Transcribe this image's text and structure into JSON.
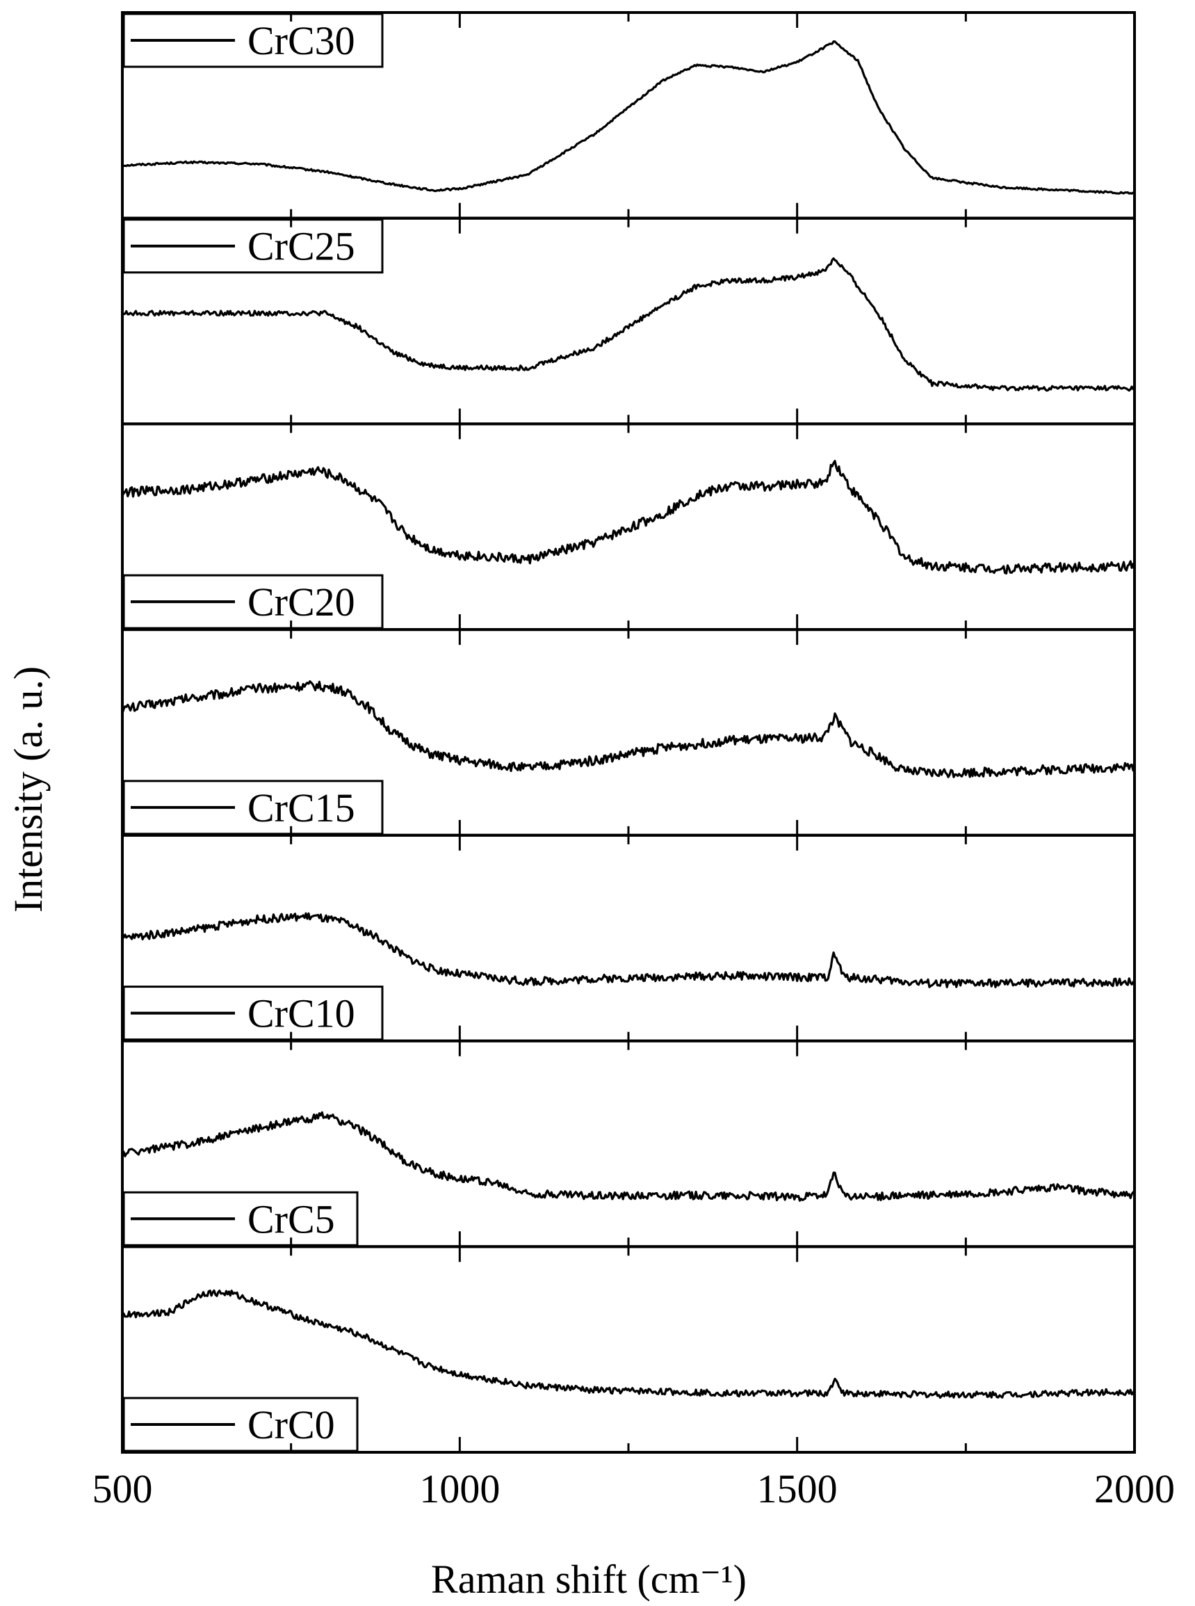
{
  "chart_data": {
    "type": "line",
    "title": "",
    "xlabel": "Raman shift (cm⁻¹)",
    "ylabel": "Intensity (a. u.)",
    "xlim": [
      500,
      2000
    ],
    "x_ticks": [
      "500",
      "1000",
      "1500",
      "2000"
    ],
    "grid": false,
    "line_color": "#000000",
    "layout": "stacked panels sharing x axis, top to bottom",
    "panels": [
      {
        "name": "CrC30",
        "legend": "top-left",
        "points": [
          [
            500,
            0.18
          ],
          [
            600,
            0.2
          ],
          [
            700,
            0.19
          ],
          [
            800,
            0.14
          ],
          [
            900,
            0.06
          ],
          [
            960,
            0.02
          ],
          [
            1000,
            0.03
          ],
          [
            1100,
            0.12
          ],
          [
            1200,
            0.38
          ],
          [
            1300,
            0.72
          ],
          [
            1350,
            0.82
          ],
          [
            1400,
            0.81
          ],
          [
            1450,
            0.78
          ],
          [
            1500,
            0.84
          ],
          [
            1555,
            0.97
          ],
          [
            1590,
            0.85
          ],
          [
            1620,
            0.55
          ],
          [
            1660,
            0.28
          ],
          [
            1700,
            0.1
          ],
          [
            1800,
            0.04
          ],
          [
            2000,
            0.0
          ]
        ]
      },
      {
        "name": "CrC25",
        "legend": "top-left",
        "points": [
          [
            500,
            0.55
          ],
          [
            600,
            0.55
          ],
          [
            700,
            0.55
          ],
          [
            800,
            0.55
          ],
          [
            850,
            0.46
          ],
          [
            900,
            0.3
          ],
          [
            950,
            0.22
          ],
          [
            1000,
            0.2
          ],
          [
            1100,
            0.2
          ],
          [
            1200,
            0.33
          ],
          [
            1300,
            0.6
          ],
          [
            1350,
            0.72
          ],
          [
            1400,
            0.76
          ],
          [
            1450,
            0.76
          ],
          [
            1500,
            0.78
          ],
          [
            1540,
            0.82
          ],
          [
            1555,
            0.9
          ],
          [
            1580,
            0.78
          ],
          [
            1620,
            0.55
          ],
          [
            1660,
            0.25
          ],
          [
            1700,
            0.1
          ],
          [
            1800,
            0.07
          ],
          [
            2000,
            0.07
          ]
        ]
      },
      {
        "name": "CrC20",
        "legend": "bottom-left",
        "points": [
          [
            500,
            0.72
          ],
          [
            600,
            0.74
          ],
          [
            700,
            0.8
          ],
          [
            790,
            0.86
          ],
          [
            830,
            0.8
          ],
          [
            880,
            0.65
          ],
          [
            920,
            0.45
          ],
          [
            960,
            0.35
          ],
          [
            1000,
            0.32
          ],
          [
            1100,
            0.29
          ],
          [
            1200,
            0.4
          ],
          [
            1300,
            0.58
          ],
          [
            1350,
            0.7
          ],
          [
            1400,
            0.76
          ],
          [
            1450,
            0.76
          ],
          [
            1500,
            0.77
          ],
          [
            1540,
            0.78
          ],
          [
            1555,
            0.92
          ],
          [
            1580,
            0.74
          ],
          [
            1620,
            0.55
          ],
          [
            1660,
            0.3
          ],
          [
            1700,
            0.25
          ],
          [
            1800,
            0.23
          ],
          [
            2000,
            0.25
          ]
        ]
      },
      {
        "name": "CrC15",
        "legend": "bottom-left",
        "points": [
          [
            500,
            0.65
          ],
          [
            600,
            0.72
          ],
          [
            700,
            0.78
          ],
          [
            780,
            0.8
          ],
          [
            820,
            0.78
          ],
          [
            860,
            0.68
          ],
          [
            900,
            0.5
          ],
          [
            950,
            0.37
          ],
          [
            1000,
            0.32
          ],
          [
            1100,
            0.27
          ],
          [
            1200,
            0.32
          ],
          [
            1300,
            0.4
          ],
          [
            1400,
            0.45
          ],
          [
            1500,
            0.46
          ],
          [
            1540,
            0.47
          ],
          [
            1555,
            0.6
          ],
          [
            1580,
            0.44
          ],
          [
            1620,
            0.35
          ],
          [
            1660,
            0.25
          ],
          [
            1700,
            0.24
          ],
          [
            1800,
            0.25
          ],
          [
            2000,
            0.28
          ]
        ]
      },
      {
        "name": "CrC10",
        "legend": "bottom-left",
        "points": [
          [
            500,
            0.5
          ],
          [
            600,
            0.55
          ],
          [
            700,
            0.62
          ],
          [
            780,
            0.64
          ],
          [
            830,
            0.6
          ],
          [
            880,
            0.5
          ],
          [
            920,
            0.38
          ],
          [
            960,
            0.3
          ],
          [
            1000,
            0.27
          ],
          [
            1100,
            0.22
          ],
          [
            1200,
            0.24
          ],
          [
            1300,
            0.25
          ],
          [
            1400,
            0.26
          ],
          [
            1500,
            0.25
          ],
          [
            1545,
            0.25
          ],
          [
            1555,
            0.4
          ],
          [
            1570,
            0.25
          ],
          [
            1700,
            0.21
          ],
          [
            1800,
            0.21
          ],
          [
            2000,
            0.22
          ]
        ]
      },
      {
        "name": "CrC5",
        "legend": "bottom-left",
        "points": [
          [
            500,
            0.44
          ],
          [
            600,
            0.5
          ],
          [
            700,
            0.6
          ],
          [
            800,
            0.68
          ],
          [
            840,
            0.62
          ],
          [
            880,
            0.52
          ],
          [
            920,
            0.38
          ],
          [
            970,
            0.3
          ],
          [
            1050,
            0.25
          ],
          [
            1100,
            0.18
          ],
          [
            1200,
            0.17
          ],
          [
            1300,
            0.17
          ],
          [
            1400,
            0.17
          ],
          [
            1500,
            0.16
          ],
          [
            1545,
            0.17
          ],
          [
            1555,
            0.32
          ],
          [
            1570,
            0.16
          ],
          [
            1700,
            0.17
          ],
          [
            1800,
            0.19
          ],
          [
            1880,
            0.22
          ],
          [
            2000,
            0.17
          ]
        ]
      },
      {
        "name": "CrC0",
        "legend": "bottom-left",
        "points": [
          [
            500,
            0.72
          ],
          [
            570,
            0.74
          ],
          [
            620,
            0.86
          ],
          [
            660,
            0.86
          ],
          [
            700,
            0.8
          ],
          [
            780,
            0.68
          ],
          [
            850,
            0.6
          ],
          [
            900,
            0.5
          ],
          [
            950,
            0.4
          ],
          [
            1000,
            0.34
          ],
          [
            1100,
            0.27
          ],
          [
            1200,
            0.24
          ],
          [
            1300,
            0.23
          ],
          [
            1400,
            0.22
          ],
          [
            1500,
            0.22
          ],
          [
            1545,
            0.22
          ],
          [
            1555,
            0.3
          ],
          [
            1570,
            0.22
          ],
          [
            1700,
            0.21
          ],
          [
            1800,
            0.21
          ],
          [
            2000,
            0.23
          ]
        ]
      }
    ]
  }
}
